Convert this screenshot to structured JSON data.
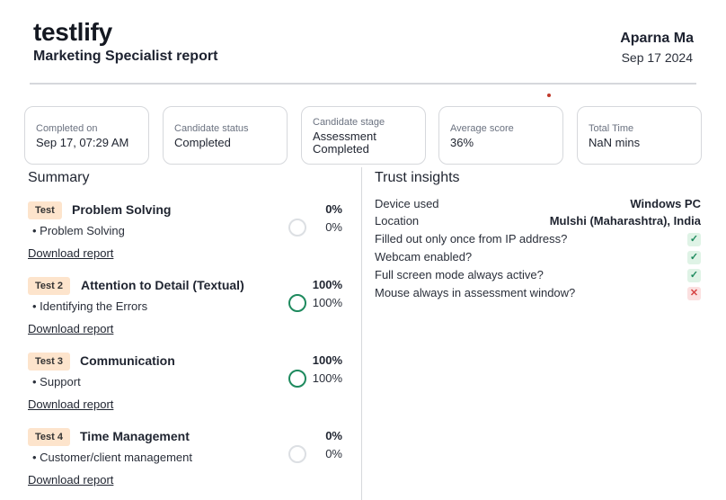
{
  "header": {
    "brand": "testlify",
    "report_title": "Marketing Specialist report",
    "candidate_name": "Aparna Ma",
    "report_date": "Sep 17 2024"
  },
  "stats": [
    {
      "label": "Completed on",
      "value": "Sep 17, 07:29 AM"
    },
    {
      "label": "Candidate status",
      "value": "Completed"
    },
    {
      "label": "Candidate stage",
      "value_line1": "Assessment",
      "value_line2": "Completed"
    },
    {
      "label": "Average score",
      "value": "36%"
    },
    {
      "label": "Total Time",
      "value": "NaN mins"
    }
  ],
  "summary": {
    "title": "Summary",
    "download_label": "Download report",
    "tests": [
      {
        "badge": "Test",
        "name": "Problem Solving",
        "score": "0%",
        "skill": "Problem Solving",
        "skill_score": "0%",
        "skill_fraction": 0
      },
      {
        "badge": "Test 2",
        "name": "Attention to Detail (Textual)",
        "score": "100%",
        "skill": "Identifying the Errors",
        "skill_score": "100%",
        "skill_fraction": 1
      },
      {
        "badge": "Test 3",
        "name": "Communication",
        "score": "100%",
        "skill": "Support",
        "skill_score": "100%",
        "skill_fraction": 1
      },
      {
        "badge": "Test 4",
        "name": "Time Management",
        "score": "0%",
        "skill": "Customer/client management",
        "skill_score": "0%",
        "skill_fraction": 0
      }
    ]
  },
  "trust": {
    "title": "Trust insights",
    "device_label": "Device used",
    "device_value": "Windows PC",
    "location_label": "Location",
    "location_value": "Mulshi (Maharashtra), India",
    "checks": [
      {
        "label": "Filled out only once from IP address?",
        "status": "yes"
      },
      {
        "label": "Webcam enabled?",
        "status": "yes"
      },
      {
        "label": "Full screen mode always active?",
        "status": "yes"
      },
      {
        "label": "Mouse always in assessment window?",
        "status": "no"
      }
    ]
  },
  "colors": {
    "accent_green": "#1e8a5e",
    "badge_bg": "#fde4cc",
    "fail_red": "#d64545"
  }
}
